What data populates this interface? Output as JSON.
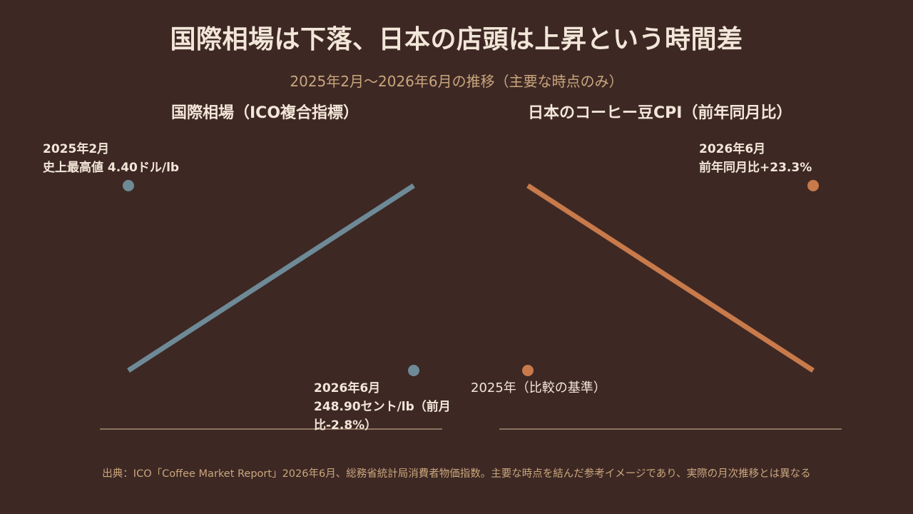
{
  "title": "国際相場は下落、日本の店頭は上昇という時間差",
  "subtitle": "2025年2月〜2026年6月の推移（主要な時点のみ）",
  "footer": "出典：ICO「Coffee Market Report」2026年6月、総務省統計局消費者物価指数。主要な時点を結んだ参考イメージであり、実際の月次推移とは異なる",
  "colors": {
    "background": "#3d2824",
    "ico_series": "#6e8a97",
    "cpi_series": "#c87a4a",
    "axis": "#8c7260"
  },
  "chart_data": [
    {
      "type": "line",
      "title": "国際相場（ICO複合指標）",
      "series": [
        {
          "name": "",
          "points": [
            {
              "x": "2025年2月",
              "y": 1.0,
              "label_line1": "2025年2月",
              "label_line2": "史上最高値 4.40ドル/lb"
            },
            {
              "x": "2026年6月",
              "y": 0.0,
              "label_line1": "2026年6月",
              "label_line2": "248.90セント/lb（前月比-2.8%）"
            }
          ]
        }
      ],
      "ylim": [
        0,
        1
      ]
    },
    {
      "type": "line",
      "title": "日本のコーヒー豆CPI（前年同月比）",
      "series": [
        {
          "name": "",
          "points": [
            {
              "x": "2025年",
              "y": 0.0,
              "label_line1": "2025年（比較の基準）"
            },
            {
              "x": "2026年6月",
              "y": 1.0,
              "label_line1": "2026年6月",
              "label_line2": "前年同月比+23.3%"
            }
          ]
        }
      ],
      "ylim": [
        0,
        1
      ]
    }
  ]
}
